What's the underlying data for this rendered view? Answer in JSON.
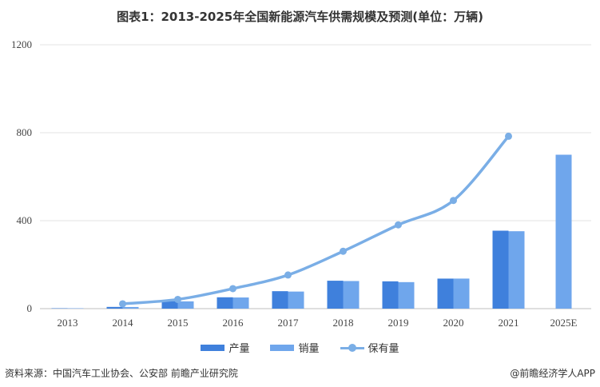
{
  "title": "图表1：2013-2025年全国新能源汽车供需规模及预测(单位：万辆)",
  "colors": {
    "production": "#3f80dc",
    "sales": "#6fa6ec",
    "stock": "#7aaee6"
  },
  "chart_data": {
    "type": "bar",
    "categories": [
      "2013",
      "2014",
      "2015",
      "2016",
      "2017",
      "2018",
      "2019",
      "2020",
      "2021",
      "2025E"
    ],
    "ylim": [
      0,
      1200
    ],
    "yticks": [
      "0",
      "400",
      "800",
      "1200"
    ],
    "grid": true,
    "legend_position": "bottom",
    "series": [
      {
        "name": "产量",
        "type": "bar",
        "values": [
          1.8,
          7.9,
          34.0,
          51.7,
          79.4,
          127.0,
          124.2,
          136.6,
          354.5,
          null
        ]
      },
      {
        "name": "销量",
        "type": "bar",
        "values": [
          1.8,
          7.5,
          33.1,
          50.7,
          77.7,
          125.6,
          120.6,
          136.7,
          352.1,
          700
        ]
      },
      {
        "name": "保有量",
        "type": "line",
        "values": [
          null,
          22,
          42,
          91,
          153,
          261,
          381,
          492,
          784,
          null
        ]
      }
    ]
  },
  "footer": {
    "source": "资料来源：中国汽车工业协会、公安部 前瞻产业研究院",
    "brand": "@前瞻经济学人APP"
  }
}
